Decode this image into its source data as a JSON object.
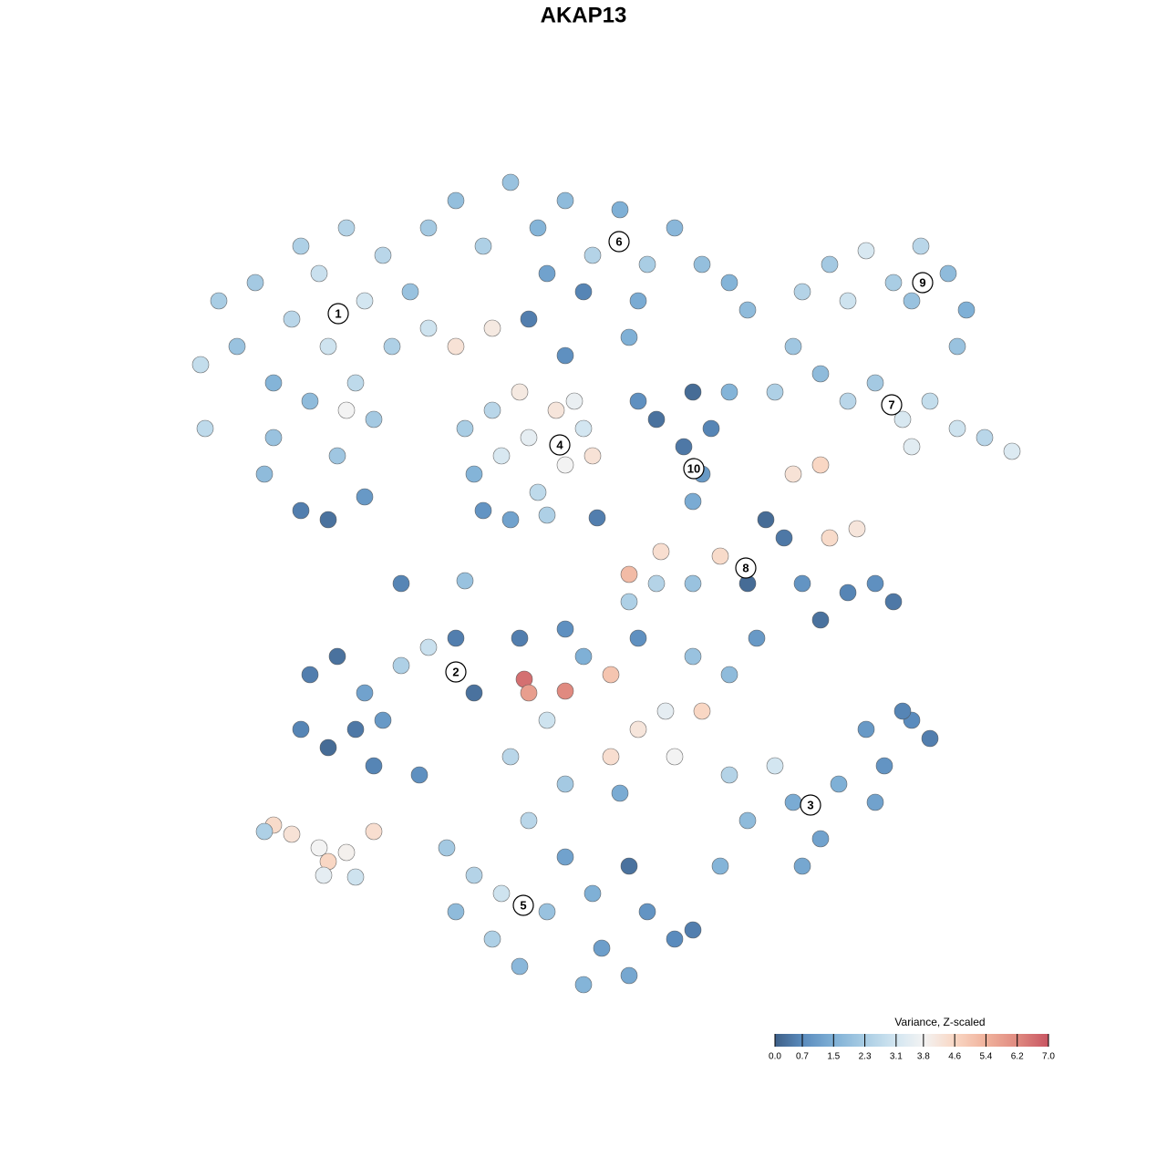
{
  "chart_data": {
    "type": "scatter",
    "title": "AKAP13",
    "x": [
      20,
      40,
      60,
      80,
      100,
      100,
      120,
      130,
      140,
      150,
      160,
      170,
      180,
      190,
      200,
      210,
      220,
      230,
      250,
      130,
      160,
      200,
      180,
      90,
      25,
      270,
      300,
      330,
      360,
      390,
      420,
      450,
      480,
      510,
      540,
      570,
      600,
      620,
      400,
      440,
      500,
      270,
      300,
      340,
      380,
      420,
      490,
      680,
      710,
      750,
      780,
      810,
      840,
      860,
      850,
      730,
      800,
      670,
      700,
      730,
      760,
      790,
      820,
      850,
      880,
      910,
      650,
      800,
      310,
      320,
      340,
      350,
      370,
      380,
      390,
      410,
      420,
      440,
      450,
      330,
      360,
      400,
      430,
      500,
      520,
      560,
      580,
      550,
      570,
      560,
      600,
      640,
      660,
      670,
      700,
      710,
      740,
      680,
      700,
      730,
      760,
      780,
      590,
      560,
      620,
      520,
      490,
      140,
      170,
      200,
      130,
      160,
      190,
      220,
      240,
      270,
      300,
      320,
      210,
      260,
      370,
      375,
      380,
      420,
      400,
      440,
      470,
      500,
      500,
      530,
      560,
      540,
      570,
      600,
      630,
      490,
      420,
      360,
      420,
      480,
      470,
      600,
      620,
      650,
      670,
      700,
      720,
      750,
      770,
      800,
      820,
      760,
      680,
      590,
      790,
      290,
      320,
      300,
      340,
      370,
      400,
      420,
      450,
      460,
      490,
      510,
      540,
      560,
      440,
      380,
      490,
      350,
      100,
      120,
      150,
      160,
      180,
      155,
      210,
      190,
      90,
      240,
      310,
      455,
      525
    ],
    "y": [
      690,
      760,
      710,
      780,
      670,
      610,
      740,
      820,
      650,
      790,
      710,
      590,
      840,
      670,
      760,
      630,
      810,
      710,
      770,
      530,
      520,
      545,
      640,
      570,
      620,
      840,
      870,
      820,
      890,
      840,
      870,
      810,
      860,
      800,
      840,
      800,
      780,
      750,
      790,
      770,
      760,
      730,
      710,
      730,
      740,
      700,
      720,
      770,
      800,
      815,
      780,
      820,
      790,
      750,
      710,
      760,
      760,
      710,
      680,
      650,
      670,
      630,
      650,
      620,
      610,
      595,
      660,
      600,
      620,
      570,
      640,
      590,
      660,
      610,
      550,
      640,
      580,
      620,
      590,
      530,
      520,
      525,
      650,
      650,
      630,
      660,
      620,
      600,
      570,
      540,
      660,
      520,
      500,
      570,
      580,
      500,
      510,
      450,
      410,
      440,
      450,
      430,
      480,
      450,
      450,
      450,
      460,
      350,
      370,
      330,
      290,
      270,
      290,
      300,
      360,
      380,
      390,
      330,
      250,
      240,
      390,
      345,
      330,
      332,
      300,
      370,
      350,
      390,
      290,
      310,
      370,
      260,
      310,
      350,
      390,
      430,
      400,
      260,
      230,
      220,
      260,
      240,
      190,
      250,
      210,
      170,
      230,
      290,
      250,
      300,
      280,
      210,
      140,
      140,
      310,
      160,
      130,
      90,
      60,
      30,
      90,
      150,
      110,
      50,
      20,
      90,
      60,
      70,
      10,
      190,
      140,
      110,
      185,
      175,
      160,
      145,
      155,
      130,
      178,
      128,
      178,
      450,
      453,
      522,
      485
    ],
    "values": [
      2.8,
      2.3,
      2.0,
      2.2,
      1.6,
      2.0,
      2.6,
      2.4,
      1.8,
      2.9,
      3.0,
      2.1,
      2.5,
      2.7,
      3.1,
      2.2,
      2.6,
      2.4,
      2.0,
      0.5,
      0.3,
      1.0,
      3.8,
      1.8,
      2.7,
      2.2,
      1.9,
      2.4,
      2.0,
      1.6,
      1.8,
      2.5,
      1.5,
      2.3,
      1.7,
      1.9,
      1.6,
      1.8,
      1.2,
      0.6,
      1.4,
      3.0,
      4.3,
      4.1,
      0.5,
      0.8,
      1.5,
      2.5,
      2.2,
      3.2,
      2.3,
      2.6,
      1.8,
      1.5,
      2.0,
      3.0,
      2.0,
      2.1,
      1.8,
      2.6,
      2.2,
      3.2,
      2.8,
      3.0,
      2.6,
      3.3,
      2.4,
      3.4,
      2.3,
      1.6,
      2.6,
      3.2,
      4.1,
      3.5,
      2.7,
      4.2,
      3.8,
      3.1,
      4.3,
      0.9,
      1.2,
      2.4,
      3.6,
      0.8,
      0.3,
      0.2,
      0.6,
      0.4,
      1.0,
      1.4,
      1.6,
      0.2,
      0.4,
      4.3,
      4.6,
      4.5,
      4.2,
      0.9,
      0.3,
      0.6,
      0.8,
      0.4,
      4.5,
      2.0,
      0.2,
      2.5,
      5.2,
      0.5,
      0.3,
      1.2,
      0.6,
      0.2,
      0.4,
      1.0,
      2.4,
      2.9,
      0.5,
      0.3,
      0.6,
      0.8,
      0.5,
      6.6,
      5.8,
      6.2,
      3.0,
      1.5,
      5.0,
      0.8,
      4.2,
      3.5,
      2.0,
      3.8,
      4.6,
      1.8,
      1.0,
      2.4,
      0.8,
      2.6,
      2.2,
      1.4,
      4.4,
      2.5,
      1.8,
      3.1,
      1.4,
      1.2,
      1.5,
      1.0,
      0.9,
      0.7,
      0.5,
      1.2,
      1.3,
      1.6,
      0.6,
      2.2,
      2.5,
      1.8,
      2.4,
      1.7,
      2.0,
      1.2,
      1.5,
      1.1,
      1.3,
      0.9,
      0.7,
      0.5,
      1.6,
      2.6,
      0.3,
      3.0,
      4.5,
      4.3,
      3.8,
      4.6,
      3.9,
      3.5,
      4.4,
      3.0,
      2.4,
      0.6,
      2.0,
      0.5,
      4.4
    ],
    "xlim": [
      0,
      930
    ],
    "ylim": [
      0,
      905
    ],
    "annotations": [
      {
        "text": "1",
        "x": 171,
        "y": 746
      },
      {
        "text": "2",
        "x": 300,
        "y": 353
      },
      {
        "text": "3",
        "x": 689,
        "y": 207
      },
      {
        "text": "4",
        "x": 414,
        "y": 602
      },
      {
        "text": "5",
        "x": 374,
        "y": 97
      },
      {
        "text": "6",
        "x": 479,
        "y": 825
      },
      {
        "text": "7",
        "x": 778,
        "y": 646
      },
      {
        "text": "8",
        "x": 618,
        "y": 467
      },
      {
        "text": "9",
        "x": 812,
        "y": 780
      },
      {
        "text": "10",
        "x": 561,
        "y": 576
      }
    ],
    "colorbar": {
      "title": "Variance, Z-scaled",
      "ticks": [
        {
          "value": 0,
          "label": "0.0"
        },
        0.7,
        1.5,
        2.3,
        3.1,
        3.8,
        4.6,
        5.4,
        6.2,
        {
          "value": 7,
          "label": "7.0"
        }
      ],
      "colors": [
        "#3e5f87",
        "#5a8bbd",
        "#7fb0d6",
        "#a9cde4",
        "#d3e6f1",
        "#f3f3f3",
        "#f9d7c4",
        "#f0b29c",
        "#e08a80",
        "#c85562"
      ]
    }
  }
}
